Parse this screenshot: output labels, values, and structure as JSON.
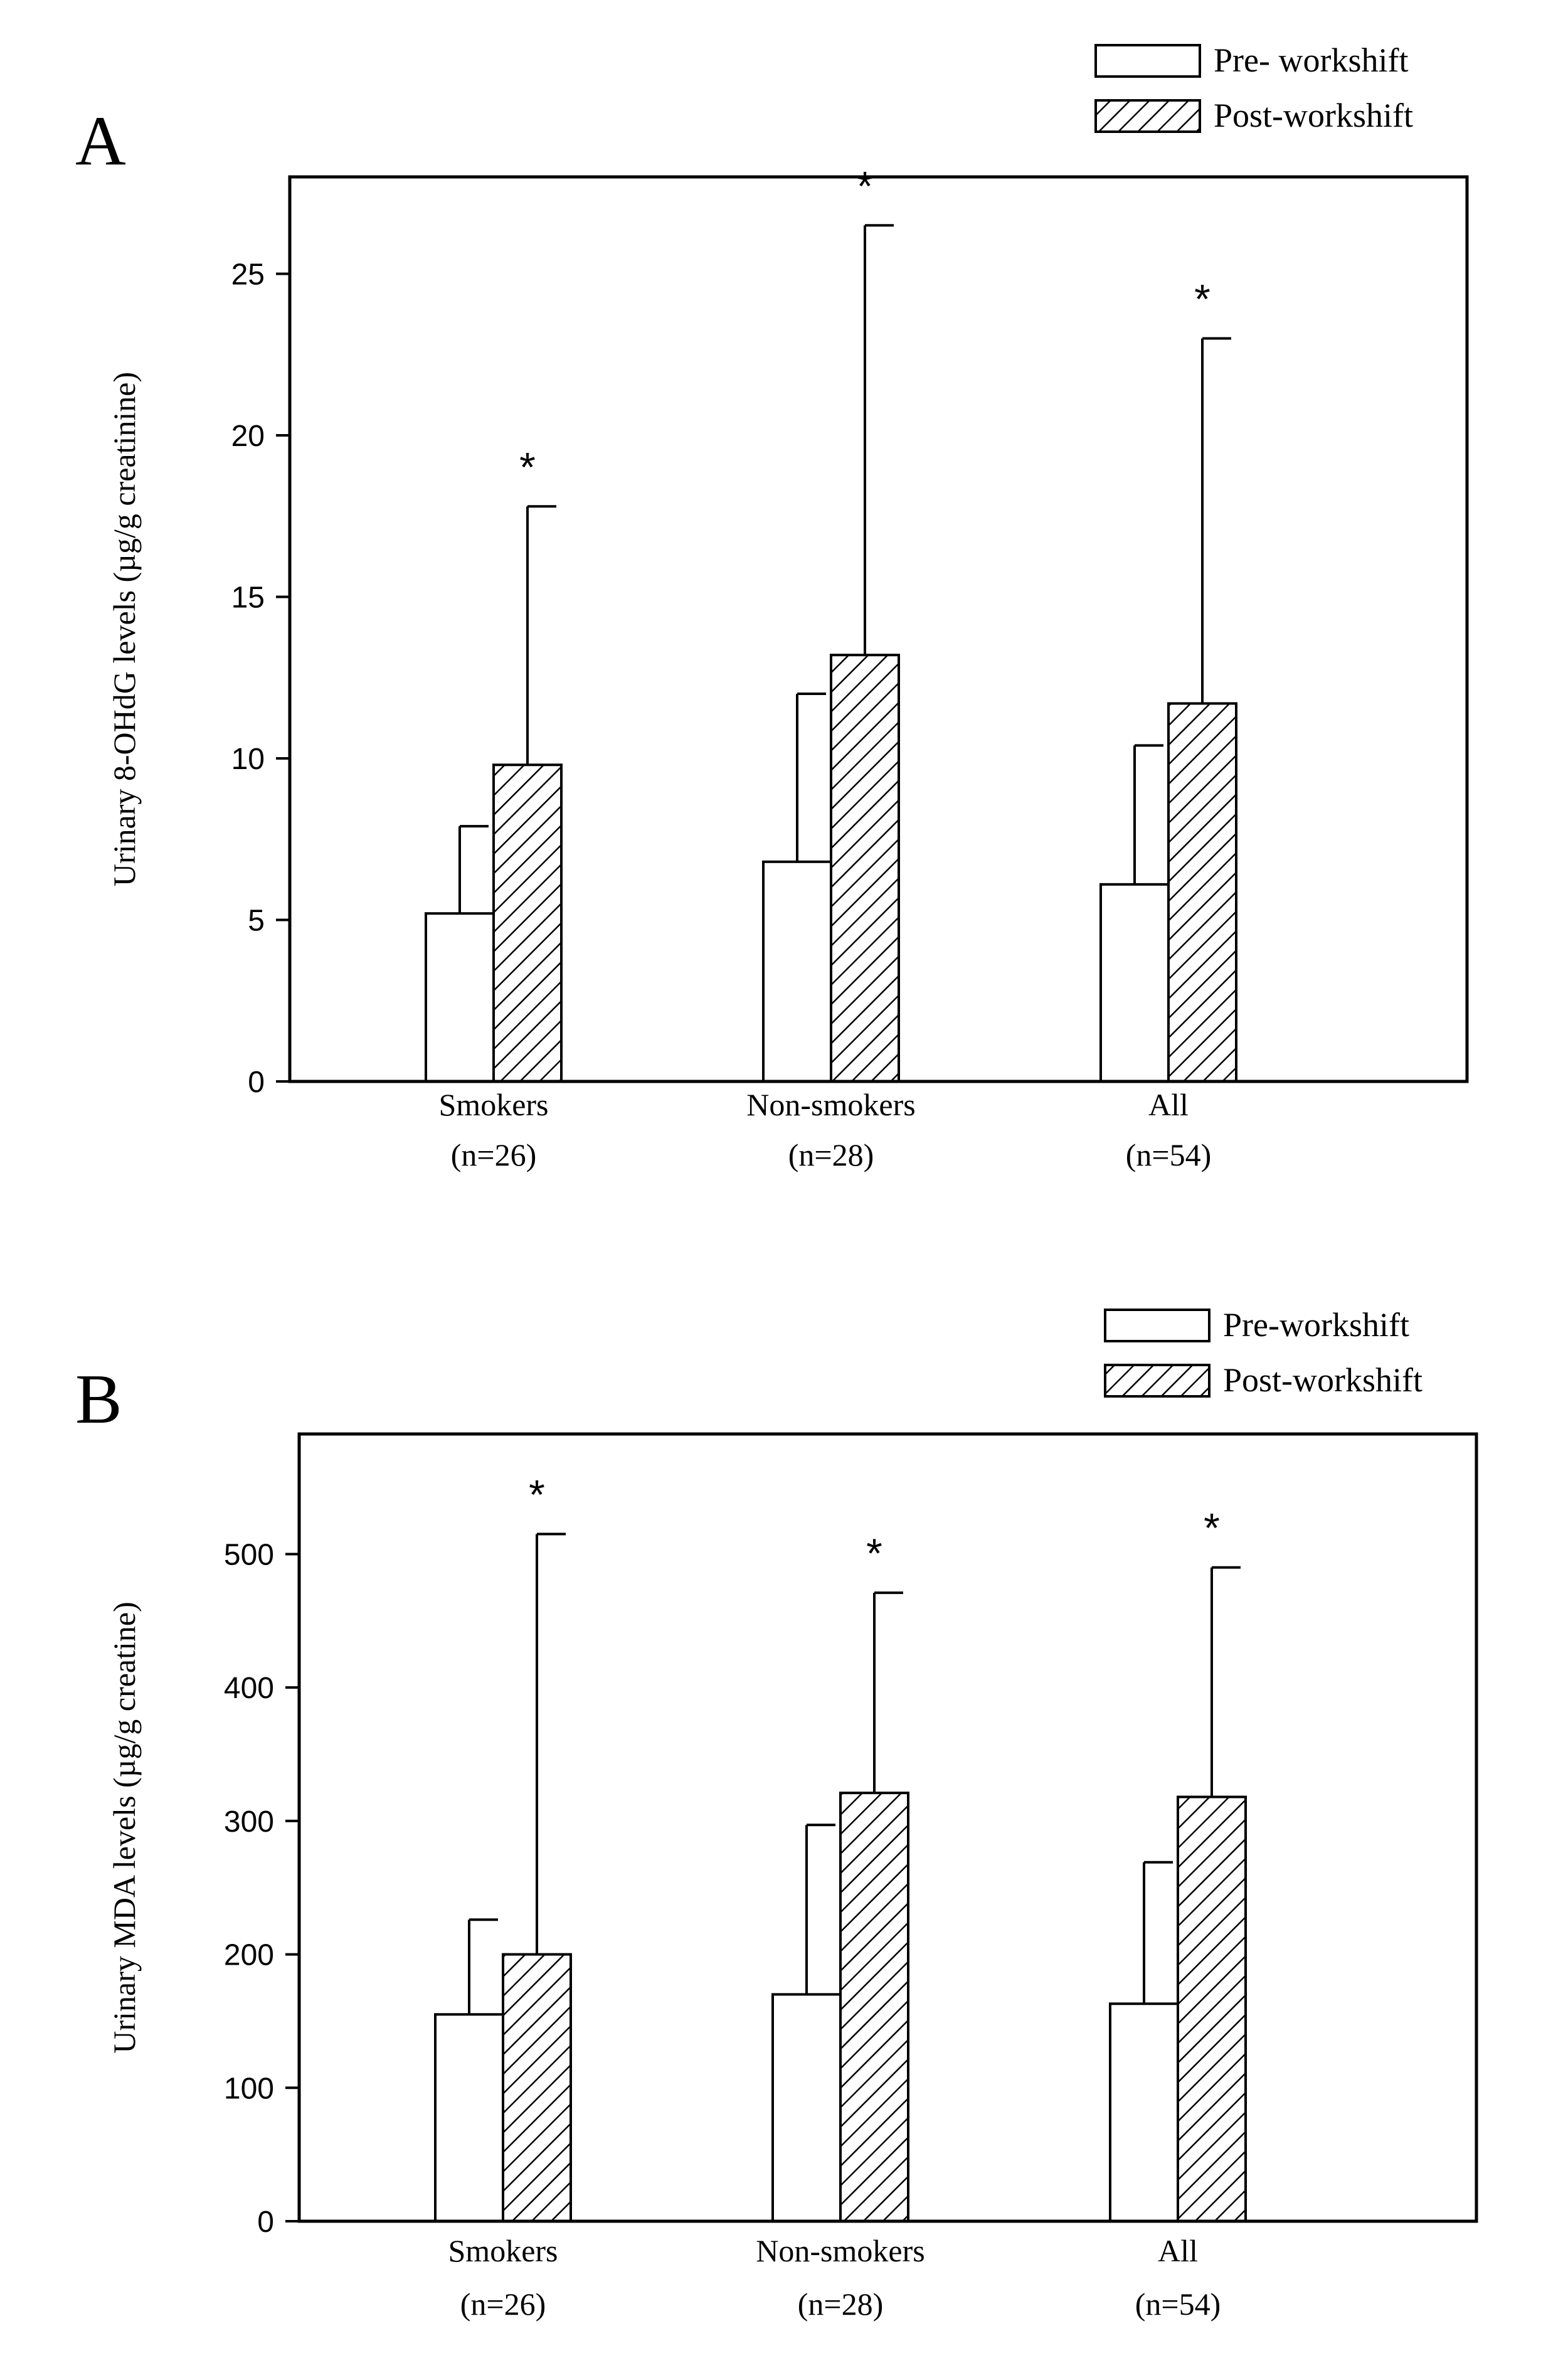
{
  "figure": {
    "panels": [
      "A",
      "B"
    ]
  },
  "chart_data": [
    {
      "panel_label": "A",
      "type": "bar",
      "title": "",
      "xlabel": "",
      "ylabel": "Urinary 8-OHdG levels (µg/g creatinine)",
      "ylim": [
        0,
        28
      ],
      "yticks": [
        0,
        5,
        10,
        15,
        20,
        25
      ],
      "grid": false,
      "legend_position": "top-right, outside plot",
      "categories": [
        "Smokers",
        "Non-smokers",
        "All"
      ],
      "category_n": [
        "(n=26)",
        "(n=28)",
        "(n=54)"
      ],
      "series": [
        {
          "name": "Pre- workshift",
          "pattern": "open",
          "values": [
            5.2,
            6.8,
            6.1
          ],
          "error_upper": [
            7.9,
            12.0,
            10.4
          ]
        },
        {
          "name": "Post-workshift",
          "pattern": "hatched",
          "values": [
            9.8,
            13.2,
            11.7
          ],
          "error_upper": [
            17.8,
            26.5,
            23.0
          ]
        }
      ],
      "significance_marker": "*",
      "significance_on": [
        "Post-workshift"
      ]
    },
    {
      "panel_label": "B",
      "type": "bar",
      "title": "",
      "xlabel": "",
      "ylabel": "Urinary MDA levels (µg/g creatine)",
      "ylim": [
        0,
        590
      ],
      "yticks": [
        0,
        100,
        200,
        300,
        400,
        500
      ],
      "grid": false,
      "legend_position": "top-right, outside plot",
      "categories": [
        "Smokers",
        "Non-smokers",
        "All"
      ],
      "category_n": [
        "(n=26)",
        "(n=28)",
        "(n=54)"
      ],
      "series": [
        {
          "name": "Pre-workshift",
          "pattern": "open",
          "values": [
            155,
            170,
            163
          ],
          "error_upper": [
            226,
            297,
            269
          ]
        },
        {
          "name": "Post-workshift",
          "pattern": "hatched",
          "values": [
            200,
            321,
            318
          ],
          "error_upper": [
            515,
            471,
            490
          ]
        }
      ],
      "significance_marker": "*",
      "significance_on": [
        "Post-workshift"
      ]
    }
  ]
}
